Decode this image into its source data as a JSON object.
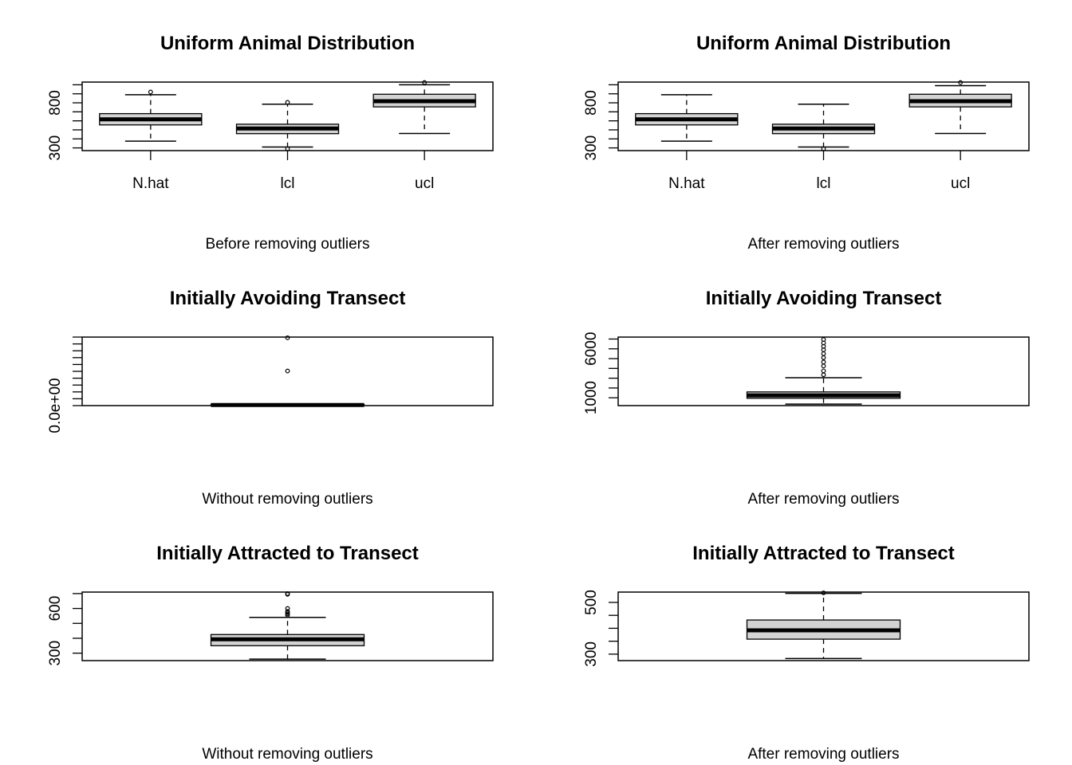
{
  "chart_data": [
    {
      "type": "boxplot",
      "title": "Uniform Animal Distribution",
      "xlabel": "Before removing outliers",
      "ylabel": "",
      "categories": [
        "N.hat",
        "lcl",
        "ucl"
      ],
      "ylim": [
        270,
        1030
      ],
      "yticks": [
        300,
        400,
        500,
        600,
        700,
        800,
        900,
        1000
      ],
      "ytick_labels": [
        "300",
        "",
        "",
        "",
        "",
        "800",
        "",
        ""
      ],
      "boxes": [
        {
          "whisker_low": 375,
          "q1": 555,
          "median": 617,
          "q3": 680,
          "whisker_high": 890,
          "outliers": [
            920
          ]
        },
        {
          "whisker_low": 310,
          "q1": 458,
          "median": 515,
          "q3": 563,
          "whisker_high": 785,
          "outliers": [
            805,
            290
          ]
        },
        {
          "whisker_low": 460,
          "q1": 755,
          "median": 818,
          "q3": 895,
          "whisker_high": 1000,
          "outliers": [
            1025
          ]
        }
      ]
    },
    {
      "type": "boxplot",
      "title": "Uniform Animal Distribution",
      "xlabel": "After removing outliers",
      "ylabel": "",
      "categories": [
        "N.hat",
        "lcl",
        "ucl"
      ],
      "ylim": [
        270,
        1030
      ],
      "yticks": [
        300,
        400,
        500,
        600,
        700,
        800,
        900,
        1000
      ],
      "ytick_labels": [
        "300",
        "",
        "",
        "",
        "",
        "800",
        "",
        ""
      ],
      "boxes": [
        {
          "whisker_low": 375,
          "q1": 555,
          "median": 617,
          "q3": 680,
          "whisker_high": 890,
          "outliers": []
        },
        {
          "whisker_low": 310,
          "q1": 458,
          "median": 515,
          "q3": 563,
          "whisker_high": 785,
          "outliers": [
            290
          ]
        },
        {
          "whisker_low": 460,
          "q1": 755,
          "median": 818,
          "q3": 895,
          "whisker_high": 990,
          "outliers": [
            1025
          ]
        }
      ]
    },
    {
      "type": "boxplot",
      "title": "Initially Avoiding Transect",
      "xlabel": "Without removing outliers",
      "ylabel": "",
      "categories": [
        ""
      ],
      "ylim": [
        0,
        1000000
      ],
      "yticks": [
        0,
        100000,
        200000,
        300000,
        400000,
        500000,
        600000,
        700000,
        800000,
        900000,
        1000000
      ],
      "ytick_labels": [
        "0.0e+00",
        "",
        "",
        "",
        "",
        "",
        "",
        "",
        "",
        "",
        ""
      ],
      "boxes": [
        {
          "whisker_low": 0,
          "q1": 6000,
          "median": 9000,
          "q3": 16000,
          "whisker_high": 26000,
          "outliers": [
            990000,
            505000
          ]
        }
      ]
    },
    {
      "type": "boxplot",
      "title": "Initially Avoiding Transect",
      "xlabel": "After removing outliers",
      "ylabel": "",
      "categories": [
        ""
      ],
      "ylim": [
        200,
        7200
      ],
      "yticks": [
        1000,
        2000,
        3000,
        4000,
        5000,
        6000,
        7000
      ],
      "ytick_labels": [
        "1000",
        "",
        "",
        "",
        "",
        "6000",
        ""
      ],
      "boxes": [
        {
          "whisker_low": 350,
          "q1": 950,
          "median": 1250,
          "q3": 1600,
          "whisker_high": 3050,
          "outliers": [
            3350,
            3750,
            4250,
            4650,
            5100,
            5500,
            5900,
            6250,
            6600,
            6950
          ]
        }
      ]
    },
    {
      "type": "boxplot",
      "title": "Initially Attracted to Transect",
      "xlabel": "Without removing outliers",
      "ylabel": "",
      "categories": [
        ""
      ],
      "ylim": [
        250,
        710
      ],
      "yticks": [
        300,
        400,
        500,
        600,
        700
      ],
      "ytick_labels": [
        "300",
        "",
        "",
        "600",
        ""
      ],
      "boxes": [
        {
          "whisker_low": 260,
          "q1": 350,
          "median": 393,
          "q3": 425,
          "whisker_high": 540,
          "outliers": [
            555,
            563,
            572,
            580,
            600,
            695,
            700
          ]
        }
      ]
    },
    {
      "type": "boxplot",
      "title": "Initially Attracted to Transect",
      "xlabel": "After removing outliers",
      "ylabel": "",
      "categories": [
        ""
      ],
      "ylim": [
        275,
        540
      ],
      "yticks": [
        300,
        350,
        400,
        450,
        500,
        550
      ],
      "ytick_labels": [
        "300",
        "",
        "",
        "",
        "500",
        ""
      ],
      "boxes": [
        {
          "whisker_low": 283,
          "q1": 358,
          "median": 392,
          "q3": 432,
          "whisker_high": 535,
          "outliers": [
            537
          ]
        }
      ]
    }
  ]
}
